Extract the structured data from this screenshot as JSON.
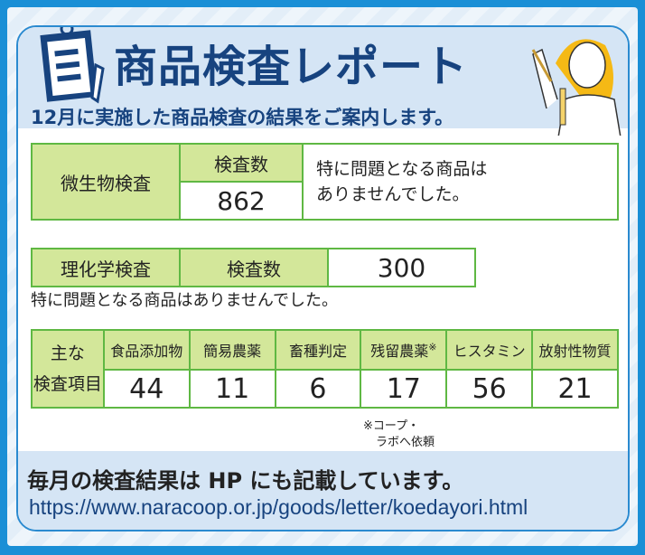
{
  "header": {
    "title": "商品検査レポート",
    "subtitle": "12月に実施した商品検査の結果をご案内します。",
    "icons": [
      "clipboard-icon",
      "scientist-illustration"
    ]
  },
  "micro": {
    "label": "微生物検査",
    "count_label": "検査数",
    "count": "862",
    "comment_line1": "特に問題となる商品は",
    "comment_line2": "ありませんでした。"
  },
  "chem": {
    "label": "理化学検査",
    "count_label": "検査数",
    "count": "300",
    "comment": "特に問題となる商品はありませんでした。"
  },
  "items": {
    "label_line1": "主な",
    "label_line2": "検査項目",
    "columns": [
      {
        "name": "食品添加物",
        "value": "44"
      },
      {
        "name": "簡易農薬",
        "value": "11"
      },
      {
        "name": "畜種判定",
        "value": "6"
      },
      {
        "name": "残留農薬",
        "mark": "※",
        "value": "17"
      },
      {
        "name": "ヒスタミン",
        "value": "56"
      },
      {
        "name": "放射性物質",
        "value": "21"
      }
    ],
    "footnote_line1": "※コープ・",
    "footnote_line2": "ラボへ依頼"
  },
  "footer": {
    "text": "毎月の検査結果は HP にも記載しています。",
    "url": "https://www.naracoop.or.jp/goods/letter/koedayori.html"
  },
  "colors": {
    "border": "#1a8fd6",
    "navy": "#17437f",
    "green_cell": "#d3e79a",
    "green_line": "#5fb843",
    "panel": "#d5e5f5"
  }
}
